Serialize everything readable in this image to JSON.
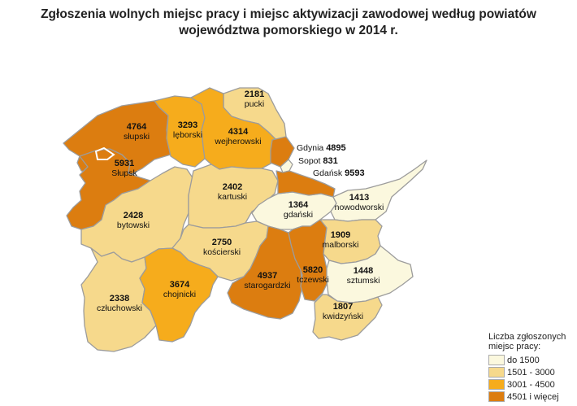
{
  "title_line1": "Zgłoszenia wolnych miejsc pracy i miejsc aktywizacji zawodowej według powiatów",
  "title_line2": "województwa pomorskiego w 2014 r.",
  "colors": {
    "c1": "#fbf8de",
    "c2": "#f6d98c",
    "c3": "#f6ac1c",
    "c4": "#dc7d10",
    "border": "#9c9c9c"
  },
  "counties": [
    {
      "key": "slupski",
      "name": "słupski",
      "value": "4764",
      "cls": "c4"
    },
    {
      "key": "lęborski",
      "name": "lęborski",
      "value": "3293",
      "cls": "c3"
    },
    {
      "key": "pucki",
      "name": "pucki",
      "value": "2181",
      "cls": "c2"
    },
    {
      "key": "wejherowski",
      "name": "wejherowski",
      "value": "4314",
      "cls": "c3"
    },
    {
      "key": "slupsk",
      "name": "Słupsk",
      "value": "5931",
      "cls": "c4"
    },
    {
      "key": "bytowski",
      "name": "bytowski",
      "value": "2428",
      "cls": "c2"
    },
    {
      "key": "kartuski",
      "name": "kartuski",
      "value": "2402",
      "cls": "c2"
    },
    {
      "key": "gdanski",
      "name": "gdański",
      "value": "1364",
      "cls": "c1"
    },
    {
      "key": "nowodworski",
      "name": "nowodworski",
      "value": "1413",
      "cls": "c1"
    },
    {
      "key": "koscierski",
      "name": "kościerski",
      "value": "2750",
      "cls": "c2"
    },
    {
      "key": "malborski",
      "name": "malborski",
      "value": "1909",
      "cls": "c2"
    },
    {
      "key": "czluchowski",
      "name": "człuchowski",
      "value": "2338",
      "cls": "c2"
    },
    {
      "key": "chojnicki",
      "name": "chojnicki",
      "value": "3674",
      "cls": "c3"
    },
    {
      "key": "starogardzki",
      "name": "starogardzki",
      "value": "4937",
      "cls": "c4"
    },
    {
      "key": "tczewski",
      "name": "tczewski",
      "value": "5820",
      "cls": "c4"
    },
    {
      "key": "sztumski",
      "name": "sztumski",
      "value": "1448",
      "cls": "c1"
    },
    {
      "key": "kwidzynski",
      "name": "kwidzyński",
      "value": "1807",
      "cls": "c2"
    }
  ],
  "cities": [
    {
      "key": "gdynia",
      "name": "Gdynia",
      "value": "4895",
      "cls": "c4"
    },
    {
      "key": "sopot",
      "name": "Sopot",
      "value": "831",
      "cls": "c1"
    },
    {
      "key": "gdansk",
      "name": "Gdańsk",
      "value": "9593",
      "cls": "c4"
    }
  ],
  "legend": {
    "title": "Liczba zgłoszonych miejsc pracy:",
    "items": [
      {
        "label": "do 1500",
        "cls": "c1"
      },
      {
        "label": "1501 - 3000",
        "cls": "c2"
      },
      {
        "label": "3001 - 4500",
        "cls": "c3"
      },
      {
        "label": "4501 i więcej",
        "cls": "c4"
      }
    ]
  }
}
